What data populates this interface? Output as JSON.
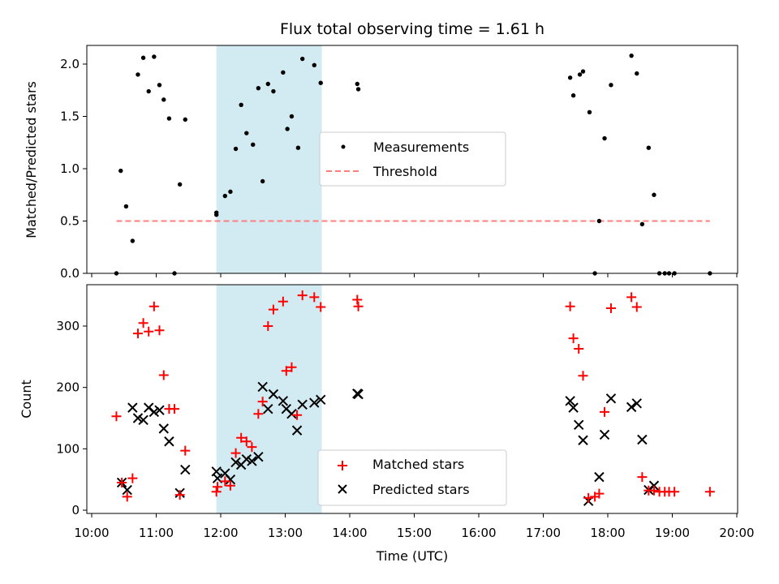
{
  "chart_data": [
    {
      "type": "scatter",
      "title": "Flux total observing time = 1.61 h",
      "xlabel": "",
      "ylabel": "Matched/Predicted stars",
      "xlim": [
        "10:00",
        "20:00"
      ],
      "ylim": [
        0,
        2.2
      ],
      "yticks": [
        "0.0",
        "0.5",
        "1.0",
        "1.5",
        "2.0"
      ],
      "shaded_region": {
        "x": [
          "11:56",
          "13:34"
        ],
        "color": "#add8e6"
      },
      "legend_position": "center",
      "series": [
        {
          "name": "Measurements",
          "marker": "dot",
          "color": "#000000",
          "points": [
            [
              "10:23",
              0.0
            ],
            [
              "10:27",
              0.98
            ],
            [
              "10:32",
              0.64
            ],
            [
              "10:38",
              0.31
            ],
            [
              "10:43",
              1.9
            ],
            [
              "10:48",
              2.06
            ],
            [
              "10:53",
              1.74
            ],
            [
              "10:58",
              2.07
            ],
            [
              "11:03",
              1.8
            ],
            [
              "11:07",
              1.66
            ],
            [
              "11:12",
              1.48
            ],
            [
              "11:17",
              0.0
            ],
            [
              "11:22",
              0.85
            ],
            [
              "11:27",
              1.47
            ],
            [
              "11:56",
              0.56
            ],
            [
              "11:56",
              0.58
            ],
            [
              "12:04",
              0.74
            ],
            [
              "12:09",
              0.78
            ],
            [
              "12:14",
              1.19
            ],
            [
              "12:19",
              1.61
            ],
            [
              "12:24",
              1.34
            ],
            [
              "12:30",
              1.23
            ],
            [
              "12:35",
              1.77
            ],
            [
              "12:39",
              0.88
            ],
            [
              "12:44",
              1.81
            ],
            [
              "12:49",
              1.74
            ],
            [
              "12:58",
              1.92
            ],
            [
              "13:02",
              1.38
            ],
            [
              "13:06",
              1.5
            ],
            [
              "13:12",
              1.2
            ],
            [
              "13:16",
              2.05
            ],
            [
              "13:27",
              1.99
            ],
            [
              "13:33",
              1.82
            ],
            [
              "14:07",
              1.81
            ],
            [
              "14:08",
              1.76
            ],
            [
              "17:25",
              1.87
            ],
            [
              "17:28",
              1.7
            ],
            [
              "17:34",
              1.9
            ],
            [
              "17:37",
              1.93
            ],
            [
              "17:43",
              1.54
            ],
            [
              "17:48",
              0.0
            ],
            [
              "17:52",
              0.5
            ],
            [
              "17:57",
              1.29
            ],
            [
              "18:03",
              1.8
            ],
            [
              "18:22",
              2.08
            ],
            [
              "18:27",
              1.91
            ],
            [
              "18:32",
              0.47
            ],
            [
              "18:38",
              1.2
            ],
            [
              "18:43",
              0.75
            ],
            [
              "18:48",
              0.0
            ],
            [
              "18:53",
              0.0
            ],
            [
              "18:57",
              0.0
            ],
            [
              "19:02",
              0.0
            ],
            [
              "19:35",
              0.0
            ]
          ]
        },
        {
          "name": "Threshold",
          "style": "dashed",
          "color": "#ff7f7f",
          "points": [
            [
              "10:23",
              0.5
            ],
            [
              "19:35",
              0.5
            ]
          ]
        }
      ]
    },
    {
      "type": "scatter",
      "title": "",
      "xlabel": "Time (UTC)",
      "ylabel": "Count",
      "xlim": [
        "10:00",
        "20:00"
      ],
      "ylim": [
        0,
        370
      ],
      "xticks": [
        "10:00",
        "11:00",
        "12:00",
        "13:00",
        "14:00",
        "15:00",
        "16:00",
        "17:00",
        "18:00",
        "19:00",
        "20:00"
      ],
      "yticks": [
        "0",
        "100",
        "200",
        "300"
      ],
      "shaded_region": {
        "x": [
          "11:56",
          "13:34"
        ],
        "color": "#add8e6"
      },
      "legend_position": "lower center",
      "series": [
        {
          "name": "Matched stars",
          "marker": "plus",
          "color": "#ff0000",
          "points": [
            [
              "10:23",
              153
            ],
            [
              "10:28",
              45
            ],
            [
              "10:33",
              22
            ],
            [
              "10:38",
              52
            ],
            [
              "10:43",
              288
            ],
            [
              "10:48",
              305
            ],
            [
              "10:53",
              291
            ],
            [
              "10:58",
              332
            ],
            [
              "11:03",
              293
            ],
            [
              "11:07",
              220
            ],
            [
              "11:12",
              165
            ],
            [
              "11:17",
              165
            ],
            [
              "11:22",
              25
            ],
            [
              "11:27",
              97
            ],
            [
              "11:56",
              30
            ],
            [
              "11:57",
              38
            ],
            [
              "12:04",
              47
            ],
            [
              "12:09",
              40
            ],
            [
              "12:14",
              93
            ],
            [
              "12:19",
              118
            ],
            [
              "12:24",
              112
            ],
            [
              "12:29",
              103
            ],
            [
              "12:35",
              157
            ],
            [
              "12:39",
              177
            ],
            [
              "12:44",
              300
            ],
            [
              "12:49",
              327
            ],
            [
              "12:58",
              340
            ],
            [
              "13:01",
              227
            ],
            [
              "13:06",
              233
            ],
            [
              "13:11",
              155
            ],
            [
              "13:16",
              350
            ],
            [
              "13:27",
              347
            ],
            [
              "13:33",
              331
            ],
            [
              "14:07",
              343
            ],
            [
              "14:08",
              332
            ],
            [
              "17:25",
              332
            ],
            [
              "17:28",
              280
            ],
            [
              "17:33",
              263
            ],
            [
              "17:37",
              219
            ],
            [
              "17:42",
              20
            ],
            [
              "17:48",
              22
            ],
            [
              "17:52",
              27
            ],
            [
              "17:57",
              160
            ],
            [
              "18:03",
              329
            ],
            [
              "18:22",
              347
            ],
            [
              "18:27",
              331
            ],
            [
              "18:32",
              54
            ],
            [
              "18:38",
              32
            ],
            [
              "18:43",
              32
            ],
            [
              "18:48",
              30
            ],
            [
              "18:53",
              30
            ],
            [
              "18:57",
              30
            ],
            [
              "19:02",
              30
            ],
            [
              "19:35",
              30
            ]
          ]
        },
        {
          "name": "Predicted stars",
          "marker": "x",
          "color": "#000000",
          "points": [
            [
              "10:28",
              45
            ],
            [
              "10:33",
              33
            ],
            [
              "10:38",
              167
            ],
            [
              "10:43",
              150
            ],
            [
              "10:48",
              147
            ],
            [
              "10:53",
              167
            ],
            [
              "10:58",
              160
            ],
            [
              "11:03",
              163
            ],
            [
              "11:07",
              133
            ],
            [
              "11:12",
              112
            ],
            [
              "11:22",
              28
            ],
            [
              "11:27",
              66
            ],
            [
              "11:56",
              63
            ],
            [
              "11:57",
              52
            ],
            [
              "12:04",
              60
            ],
            [
              "12:09",
              50
            ],
            [
              "12:14",
              78
            ],
            [
              "12:19",
              74
            ],
            [
              "12:24",
              83
            ],
            [
              "12:29",
              80
            ],
            [
              "12:35",
              87
            ],
            [
              "12:39",
              201
            ],
            [
              "12:44",
              165
            ],
            [
              "12:49",
              189
            ],
            [
              "12:58",
              178
            ],
            [
              "13:01",
              165
            ],
            [
              "13:06",
              157
            ],
            [
              "13:11",
              130
            ],
            [
              "13:16",
              172
            ],
            [
              "13:27",
              175
            ],
            [
              "13:33",
              180
            ],
            [
              "14:07",
              190
            ],
            [
              "14:08",
              189
            ],
            [
              "17:25",
              178
            ],
            [
              "17:28",
              167
            ],
            [
              "17:33",
              139
            ],
            [
              "17:37",
              114
            ],
            [
              "17:42",
              15
            ],
            [
              "17:52",
              54
            ],
            [
              "17:57",
              123
            ],
            [
              "18:03",
              182
            ],
            [
              "18:22",
              168
            ],
            [
              "18:27",
              174
            ],
            [
              "18:32",
              115
            ],
            [
              "18:38",
              33
            ],
            [
              "18:43",
              40
            ]
          ]
        }
      ]
    }
  ]
}
